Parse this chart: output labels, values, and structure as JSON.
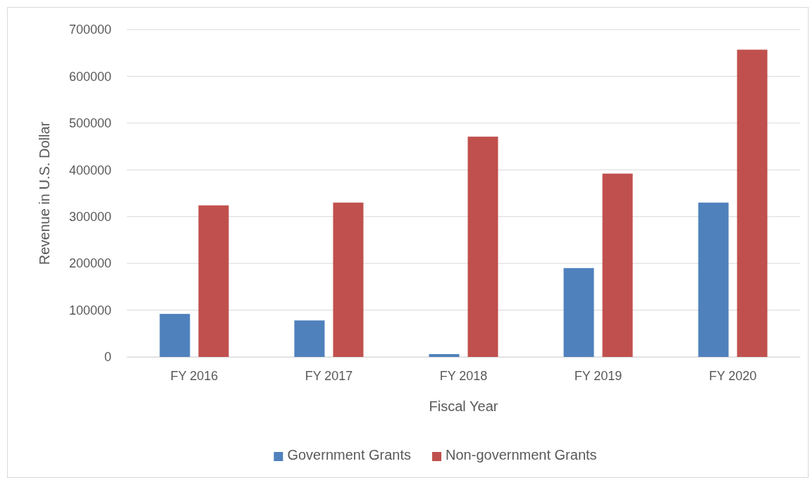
{
  "chart_data": {
    "type": "bar",
    "xlabel": "Fiscal Year",
    "ylabel": "Revenue in U.S. Dollar",
    "categories": [
      "FY 2016",
      "FY 2017",
      "FY 2018",
      "FY 2019",
      "FY 2020"
    ],
    "series": [
      {
        "name": "Government Grants",
        "color": "#4f81bd",
        "values": [
          92000,
          78000,
          6000,
          190000,
          330000
        ]
      },
      {
        "name": "Non-government Grants",
        "color": "#c0504d",
        "values": [
          324000,
          330000,
          471000,
          392000,
          657000
        ]
      }
    ],
    "ylim": [
      0,
      700000
    ],
    "yticks": [
      0,
      100000,
      200000,
      300000,
      400000,
      500000,
      600000,
      700000
    ],
    "grid": "y",
    "legend": "bottom"
  }
}
